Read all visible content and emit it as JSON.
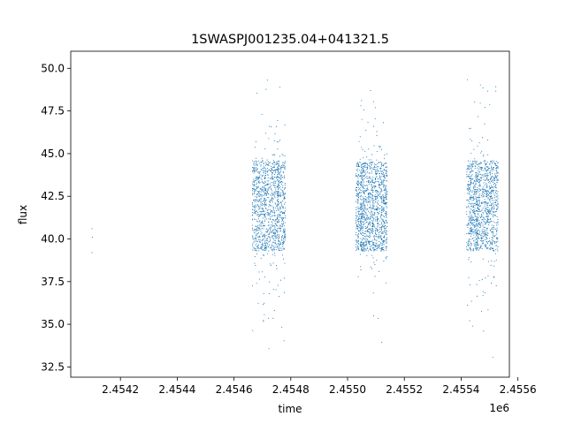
{
  "chart_data": {
    "type": "scatter",
    "title": "1SWASPJ001235.04+041321.5",
    "xlabel": "time",
    "ylabel": "flux",
    "x_offset_label": "1e6",
    "xlim": [
      2454025,
      2455570
    ],
    "ylim": [
      31.9,
      51.0
    ],
    "x_ticks": [
      2454200,
      2454400,
      2454600,
      2454800,
      2455000,
      2455200,
      2455400,
      2455600
    ],
    "x_tick_labels": [
      "2.4542",
      "2.4544",
      "2.4546",
      "2.4548",
      "2.4550",
      "2.4552",
      "2.4554",
      "2.4556"
    ],
    "y_ticks": [
      32.5,
      35.0,
      37.5,
      40.0,
      42.5,
      45.0,
      47.5,
      50.0
    ],
    "y_tick_labels": [
      "32.5",
      "35.0",
      "37.5",
      "40.0",
      "42.5",
      "45.0",
      "47.5",
      "50.0"
    ],
    "series_color": "#1f77b4",
    "grid": false,
    "observing_seasons": [
      {
        "x_start": 2454665,
        "x_end": 2454780,
        "y_core": [
          39.3,
          44.6
        ],
        "y_extent": [
          32.8,
          50.2
        ]
      },
      {
        "x_start": 2455030,
        "x_end": 2455140,
        "y_core": [
          39.3,
          44.5
        ],
        "y_extent": [
          32.7,
          50.2
        ]
      },
      {
        "x_start": 2455420,
        "x_end": 2455530,
        "y_core": [
          39.3,
          44.6
        ],
        "y_extent": [
          33.0,
          49.8
        ]
      }
    ],
    "sparse_points": [
      {
        "x": 2454100,
        "y": 40.6
      },
      {
        "x": 2454100,
        "y": 39.2
      },
      {
        "x": 2454101,
        "y": 40.1
      }
    ]
  }
}
